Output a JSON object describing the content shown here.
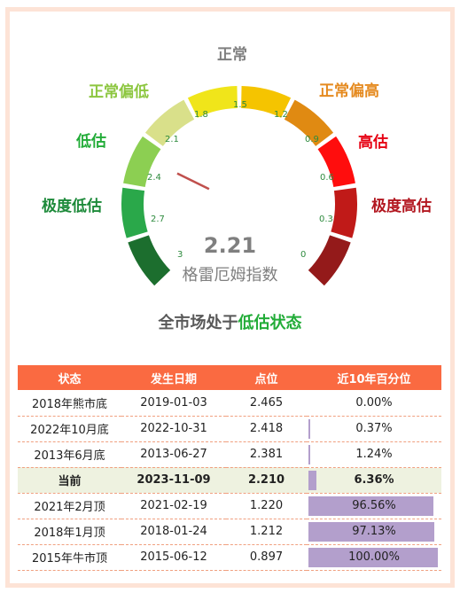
{
  "gauge": {
    "zones": [
      {
        "label": "极度低估",
        "color": "#1d8a3a"
      },
      {
        "label": "低估",
        "color": "#22ac38"
      },
      {
        "label": "正常偏低",
        "color": "#8cc63f"
      },
      {
        "label": "正常",
        "color": "#7f7f7f"
      },
      {
        "label": "正常偏高",
        "color": "#e58a1f"
      },
      {
        "label": "高估",
        "color": "#e60012"
      },
      {
        "label": "极度高估",
        "color": "#b2161f"
      }
    ],
    "ticks": [
      "3",
      "2.7",
      "2.4",
      "2.1",
      "1.8",
      "1.5",
      "1.2",
      "0.9",
      "0.6",
      "0.3",
      "0"
    ],
    "value": "2.21",
    "caption": "格雷厄姆指数",
    "needle_value": 2.21,
    "scale_min": 0,
    "scale_max": 3
  },
  "headline": {
    "prefix": "全市场处于",
    "highlight": "低估状态"
  },
  "table": {
    "headers": [
      "状态",
      "发生日期",
      "点位",
      "近10年百分位"
    ],
    "rows": [
      {
        "state": "2018年熊市底",
        "date": "2019-01-03",
        "point": "2.465",
        "pct": "0.00%",
        "frac": 0.0,
        "current": false
      },
      {
        "state": "2022年10月底",
        "date": "2022-10-31",
        "point": "2.418",
        "pct": "0.37%",
        "frac": 0.0037,
        "current": false
      },
      {
        "state": "2013年6月底",
        "date": "2013-06-27",
        "point": "2.381",
        "pct": "1.24%",
        "frac": 0.0124,
        "current": false
      },
      {
        "state": "当前",
        "date": "2023-11-09",
        "point": "2.210",
        "pct": "6.36%",
        "frac": 0.0636,
        "current": true
      },
      {
        "state": "2021年2月顶",
        "date": "2021-02-19",
        "point": "1.220",
        "pct": "96.56%",
        "frac": 0.9656,
        "current": false
      },
      {
        "state": "2018年1月顶",
        "date": "2018-01-24",
        "point": "1.212",
        "pct": "97.13%",
        "frac": 0.9713,
        "current": false
      },
      {
        "state": "2015年牛市顶",
        "date": "2015-06-12",
        "point": "0.897",
        "pct": "100.00%",
        "frac": 1.0,
        "current": false
      }
    ]
  }
}
